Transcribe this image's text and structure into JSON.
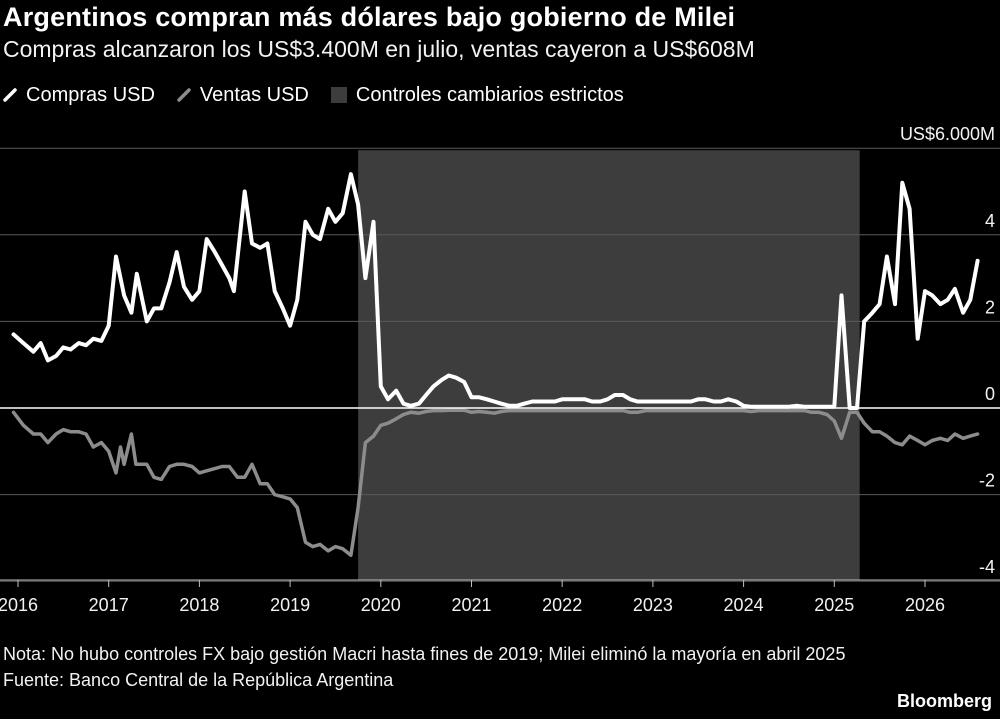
{
  "title": "Argentinos compran más dólares bajo gobierno de Milei",
  "subtitle": "Compras alcanzaron los US$3.400M en julio, ventas cayeron a US$608M",
  "legend": [
    {
      "label": "Compras USD",
      "color": "#ffffff"
    },
    {
      "label": "Ventas USD",
      "color": "#8c8c8c"
    },
    {
      "label": "Controles cambiarios estrictos",
      "color": "#3d3d3d"
    }
  ],
  "note": "Nota: No hubo controles FX bajo gestión Macri hasta fines de 2019; Milei eliminó la mayoría en abril 2025",
  "source": "Fuente: Banco Central de la República Argentina",
  "brand": "Bloomberg",
  "chart_data": {
    "type": "line",
    "title": "",
    "xlabel": "",
    "ylabel": "",
    "y_unit_label": "US$6.000M",
    "ylim": [
      -4.5,
      6
    ],
    "xlim": [
      2016.0,
      2026.75
    ],
    "y_ticks": [
      {
        "value": 6,
        "label": "US$6.000M"
      },
      {
        "value": 4,
        "label": "4"
      },
      {
        "value": 2,
        "label": "2"
      },
      {
        "value": 0,
        "label": "0"
      },
      {
        "value": -2,
        "label": "-2"
      },
      {
        "value": -4,
        "label": "-4"
      }
    ],
    "x_ticks": [
      "2016",
      "2017",
      "2018",
      "2019",
      "2020",
      "2021",
      "2022",
      "2023",
      "2024",
      "2025",
      "2026"
    ],
    "grid": true,
    "legend_position": "top-left",
    "shaded_region": {
      "label": "Controles cambiarios estrictos",
      "x_start": 2019.75,
      "x_end": 2025.28
    },
    "series": [
      {
        "name": "Compras USD",
        "color": "#ffffff",
        "points": [
          [
            2015.95,
            1.7
          ],
          [
            2016.06,
            1.5
          ],
          [
            2016.17,
            1.3
          ],
          [
            2016.25,
            1.5
          ],
          [
            2016.33,
            1.1
          ],
          [
            2016.42,
            1.2
          ],
          [
            2016.5,
            1.4
          ],
          [
            2016.58,
            1.35
          ],
          [
            2016.67,
            1.5
          ],
          [
            2016.75,
            1.45
          ],
          [
            2016.83,
            1.6
          ],
          [
            2016.92,
            1.55
          ],
          [
            2017.0,
            1.9
          ],
          [
            2017.08,
            3.5
          ],
          [
            2017.17,
            2.6
          ],
          [
            2017.25,
            2.2
          ],
          [
            2017.31,
            3.1
          ],
          [
            2017.42,
            2.0
          ],
          [
            2017.5,
            2.3
          ],
          [
            2017.58,
            2.3
          ],
          [
            2017.67,
            2.9
          ],
          [
            2017.75,
            3.6
          ],
          [
            2017.83,
            2.8
          ],
          [
            2017.92,
            2.5
          ],
          [
            2018.0,
            2.7
          ],
          [
            2018.08,
            3.9
          ],
          [
            2018.17,
            3.6
          ],
          [
            2018.25,
            3.3
          ],
          [
            2018.33,
            3.0
          ],
          [
            2018.38,
            2.7
          ],
          [
            2018.5,
            5.0
          ],
          [
            2018.58,
            3.8
          ],
          [
            2018.67,
            3.7
          ],
          [
            2018.75,
            3.8
          ],
          [
            2018.83,
            2.7
          ],
          [
            2018.92,
            2.3
          ],
          [
            2019.0,
            1.9
          ],
          [
            2019.08,
            2.5
          ],
          [
            2019.17,
            4.3
          ],
          [
            2019.25,
            4.0
          ],
          [
            2019.33,
            3.9
          ],
          [
            2019.42,
            4.6
          ],
          [
            2019.5,
            4.3
          ],
          [
            2019.58,
            4.5
          ],
          [
            2019.67,
            5.4
          ],
          [
            2019.75,
            4.7
          ],
          [
            2019.83,
            3.0
          ],
          [
            2019.92,
            4.3
          ],
          [
            2020.0,
            0.5
          ],
          [
            2020.08,
            0.2
          ],
          [
            2020.17,
            0.4
          ],
          [
            2020.25,
            0.1
          ],
          [
            2020.33,
            0.05
          ],
          [
            2020.42,
            0.1
          ],
          [
            2020.5,
            0.3
          ],
          [
            2020.58,
            0.5
          ],
          [
            2020.67,
            0.65
          ],
          [
            2020.75,
            0.75
          ],
          [
            2020.83,
            0.7
          ],
          [
            2020.92,
            0.6
          ],
          [
            2021.0,
            0.25
          ],
          [
            2021.08,
            0.25
          ],
          [
            2021.17,
            0.2
          ],
          [
            2021.25,
            0.15
          ],
          [
            2021.33,
            0.1
          ],
          [
            2021.42,
            0.05
          ],
          [
            2021.5,
            0.05
          ],
          [
            2021.58,
            0.1
          ],
          [
            2021.67,
            0.15
          ],
          [
            2021.75,
            0.15
          ],
          [
            2021.83,
            0.15
          ],
          [
            2021.92,
            0.15
          ],
          [
            2022.0,
            0.2
          ],
          [
            2022.08,
            0.2
          ],
          [
            2022.17,
            0.2
          ],
          [
            2022.25,
            0.2
          ],
          [
            2022.33,
            0.15
          ],
          [
            2022.42,
            0.15
          ],
          [
            2022.5,
            0.2
          ],
          [
            2022.58,
            0.3
          ],
          [
            2022.67,
            0.3
          ],
          [
            2022.75,
            0.2
          ],
          [
            2022.83,
            0.15
          ],
          [
            2022.92,
            0.15
          ],
          [
            2023.0,
            0.15
          ],
          [
            2023.08,
            0.15
          ],
          [
            2023.17,
            0.15
          ],
          [
            2023.25,
            0.15
          ],
          [
            2023.33,
            0.15
          ],
          [
            2023.42,
            0.15
          ],
          [
            2023.5,
            0.2
          ],
          [
            2023.58,
            0.2
          ],
          [
            2023.67,
            0.15
          ],
          [
            2023.75,
            0.15
          ],
          [
            2023.83,
            0.2
          ],
          [
            2023.92,
            0.15
          ],
          [
            2024.0,
            0.05
          ],
          [
            2024.08,
            0.03
          ],
          [
            2024.17,
            0.03
          ],
          [
            2024.25,
            0.03
          ],
          [
            2024.33,
            0.03
          ],
          [
            2024.42,
            0.03
          ],
          [
            2024.5,
            0.03
          ],
          [
            2024.58,
            0.05
          ],
          [
            2024.67,
            0.03
          ],
          [
            2024.75,
            0.03
          ],
          [
            2024.83,
            0.03
          ],
          [
            2024.92,
            0.03
          ],
          [
            2025.0,
            0.03
          ],
          [
            2025.08,
            2.6
          ],
          [
            2025.17,
            0.0
          ],
          [
            2025.25,
            0.0
          ],
          [
            2025.33,
            2.0
          ],
          [
            2025.42,
            2.2
          ],
          [
            2025.5,
            2.4
          ],
          [
            2025.58,
            3.5
          ],
          [
            2025.67,
            2.4
          ],
          [
            2025.75,
            5.2
          ],
          [
            2025.83,
            4.6
          ],
          [
            2025.92,
            1.6
          ],
          [
            2026.0,
            2.7
          ],
          [
            2026.08,
            2.6
          ],
          [
            2026.17,
            2.4
          ],
          [
            2026.25,
            2.5
          ],
          [
            2026.33,
            2.75
          ],
          [
            2026.42,
            2.2
          ],
          [
            2026.5,
            2.5
          ],
          [
            2026.58,
            3.4
          ]
        ]
      },
      {
        "name": "Ventas USD",
        "color": "#8c8c8c",
        "points": [
          [
            2015.95,
            -0.1
          ],
          [
            2016.06,
            -0.4
          ],
          [
            2016.17,
            -0.6
          ],
          [
            2016.25,
            -0.6
          ],
          [
            2016.33,
            -0.8
          ],
          [
            2016.42,
            -0.6
          ],
          [
            2016.5,
            -0.5
          ],
          [
            2016.58,
            -0.55
          ],
          [
            2016.67,
            -0.55
          ],
          [
            2016.75,
            -0.6
          ],
          [
            2016.83,
            -0.9
          ],
          [
            2016.92,
            -0.8
          ],
          [
            2017.0,
            -1.0
          ],
          [
            2017.08,
            -1.5
          ],
          [
            2017.13,
            -0.9
          ],
          [
            2017.17,
            -1.3
          ],
          [
            2017.25,
            -0.6
          ],
          [
            2017.3,
            -1.3
          ],
          [
            2017.42,
            -1.3
          ],
          [
            2017.5,
            -1.6
          ],
          [
            2017.58,
            -1.65
          ],
          [
            2017.67,
            -1.35
          ],
          [
            2017.75,
            -1.3
          ],
          [
            2017.83,
            -1.3
          ],
          [
            2017.92,
            -1.35
          ],
          [
            2018.0,
            -1.5
          ],
          [
            2018.08,
            -1.45
          ],
          [
            2018.17,
            -1.4
          ],
          [
            2018.25,
            -1.35
          ],
          [
            2018.33,
            -1.35
          ],
          [
            2018.42,
            -1.6
          ],
          [
            2018.5,
            -1.6
          ],
          [
            2018.58,
            -1.3
          ],
          [
            2018.67,
            -1.75
          ],
          [
            2018.75,
            -1.75
          ],
          [
            2018.83,
            -2.0
          ],
          [
            2018.92,
            -2.05
          ],
          [
            2019.0,
            -2.1
          ],
          [
            2019.08,
            -2.3
          ],
          [
            2019.17,
            -3.1
          ],
          [
            2019.25,
            -3.2
          ],
          [
            2019.33,
            -3.15
          ],
          [
            2019.42,
            -3.3
          ],
          [
            2019.5,
            -3.2
          ],
          [
            2019.58,
            -3.25
          ],
          [
            2019.67,
            -3.4
          ],
          [
            2019.75,
            -2.3
          ],
          [
            2019.83,
            -0.8
          ],
          [
            2019.92,
            -0.65
          ],
          [
            2020.0,
            -0.4
          ],
          [
            2020.08,
            -0.35
          ],
          [
            2020.17,
            -0.25
          ],
          [
            2020.25,
            -0.15
          ],
          [
            2020.33,
            -0.1
          ],
          [
            2020.42,
            -0.12
          ],
          [
            2020.5,
            -0.08
          ],
          [
            2020.58,
            -0.06
          ],
          [
            2020.67,
            -0.06
          ],
          [
            2020.75,
            -0.05
          ],
          [
            2020.83,
            -0.05
          ],
          [
            2020.92,
            -0.05
          ],
          [
            2021.0,
            -0.1
          ],
          [
            2021.08,
            -0.08
          ],
          [
            2021.17,
            -0.1
          ],
          [
            2021.25,
            -0.12
          ],
          [
            2021.33,
            -0.08
          ],
          [
            2021.42,
            -0.06
          ],
          [
            2021.5,
            -0.06
          ],
          [
            2021.58,
            -0.06
          ],
          [
            2021.67,
            -0.06
          ],
          [
            2021.75,
            -0.06
          ],
          [
            2021.83,
            -0.06
          ],
          [
            2021.92,
            -0.06
          ],
          [
            2022.0,
            -0.06
          ],
          [
            2022.08,
            -0.06
          ],
          [
            2022.17,
            -0.06
          ],
          [
            2022.25,
            -0.06
          ],
          [
            2022.33,
            -0.06
          ],
          [
            2022.42,
            -0.06
          ],
          [
            2022.5,
            -0.06
          ],
          [
            2022.58,
            -0.06
          ],
          [
            2022.67,
            -0.06
          ],
          [
            2022.75,
            -0.1
          ],
          [
            2022.83,
            -0.1
          ],
          [
            2022.92,
            -0.06
          ],
          [
            2023.0,
            -0.06
          ],
          [
            2023.08,
            -0.06
          ],
          [
            2023.17,
            -0.06
          ],
          [
            2023.25,
            -0.06
          ],
          [
            2023.33,
            -0.06
          ],
          [
            2023.42,
            -0.06
          ],
          [
            2023.5,
            -0.06
          ],
          [
            2023.58,
            -0.06
          ],
          [
            2023.67,
            -0.06
          ],
          [
            2023.75,
            -0.06
          ],
          [
            2023.83,
            -0.06
          ],
          [
            2023.92,
            -0.06
          ],
          [
            2024.0,
            -0.06
          ],
          [
            2024.08,
            -0.08
          ],
          [
            2024.17,
            -0.06
          ],
          [
            2024.25,
            -0.06
          ],
          [
            2024.33,
            -0.06
          ],
          [
            2024.42,
            -0.06
          ],
          [
            2024.5,
            -0.06
          ],
          [
            2024.58,
            -0.06
          ],
          [
            2024.67,
            -0.06
          ],
          [
            2024.75,
            -0.1
          ],
          [
            2024.83,
            -0.1
          ],
          [
            2024.92,
            -0.15
          ],
          [
            2025.0,
            -0.3
          ],
          [
            2025.08,
            -0.7
          ],
          [
            2025.17,
            -0.1
          ],
          [
            2025.25,
            -0.1
          ],
          [
            2025.33,
            -0.35
          ],
          [
            2025.42,
            -0.55
          ],
          [
            2025.5,
            -0.55
          ],
          [
            2025.58,
            -0.65
          ],
          [
            2025.67,
            -0.8
          ],
          [
            2025.75,
            -0.85
          ],
          [
            2025.83,
            -0.65
          ],
          [
            2025.92,
            -0.75
          ],
          [
            2026.0,
            -0.85
          ],
          [
            2026.08,
            -0.75
          ],
          [
            2026.17,
            -0.7
          ],
          [
            2026.25,
            -0.75
          ],
          [
            2026.33,
            -0.6
          ],
          [
            2026.42,
            -0.7
          ],
          [
            2026.5,
            -0.65
          ],
          [
            2026.58,
            -0.6
          ]
        ]
      }
    ]
  }
}
